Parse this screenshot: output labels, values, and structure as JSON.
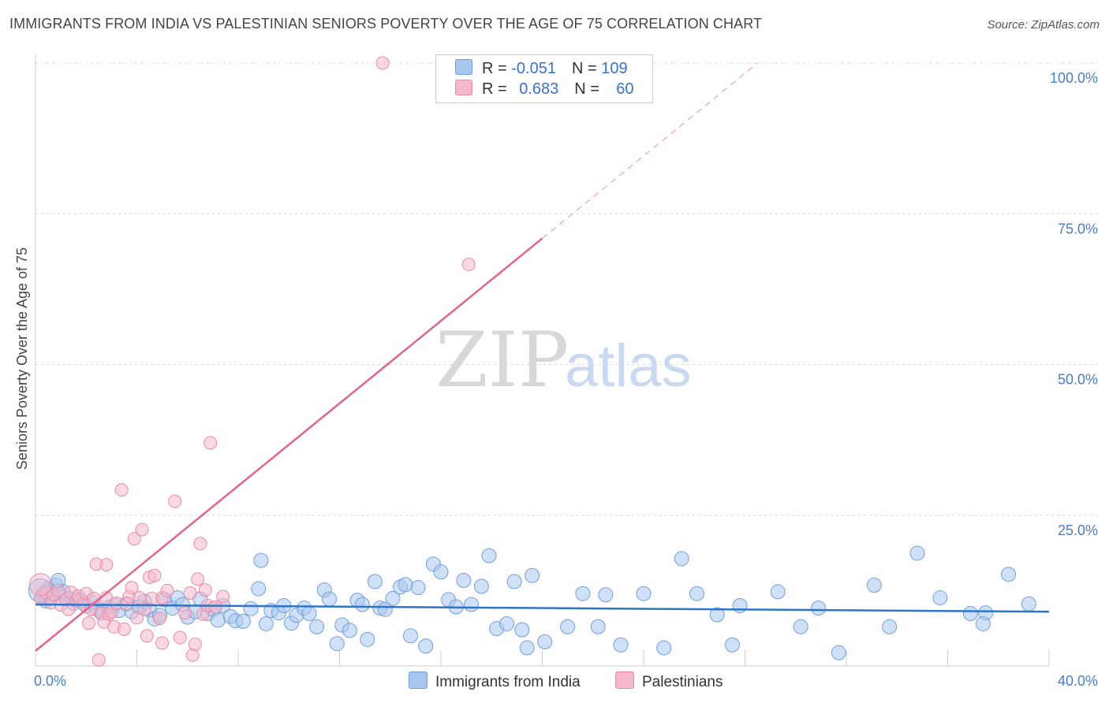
{
  "header": {
    "title": "IMMIGRANTS FROM INDIA VS PALESTINIAN SENIORS POVERTY OVER THE AGE OF 75 CORRELATION CHART",
    "source": "Source: ZipAtlas.com"
  },
  "watermark": {
    "zip": "ZIP",
    "atlas": "atlas"
  },
  "legend": {
    "rows": [
      {
        "r_label": "R = ",
        "r_value": "-0.051",
        "n_label": "N = ",
        "n_value": "109"
      },
      {
        "r_label": "R = ",
        "r_value": "0.683",
        "n_label": "N = ",
        "n_value": "60"
      }
    ]
  },
  "colors": {
    "blue_fill": "#a9c6ef",
    "blue_stroke": "#6f9fdc",
    "blue_line": "#2e74c9",
    "pink_fill": "#f5b8cb",
    "pink_stroke": "#e78aa8",
    "pink_line": "#e0648e",
    "grid": "#d5d5d5",
    "axis_text": "#4a7cc7"
  },
  "chart_data": {
    "type": "scatter",
    "title": "IMMIGRANTS FROM INDIA VS PALESTINIAN SENIORS POVERTY OVER THE AGE OF 75 CORRELATION CHART",
    "xlabel": "",
    "ylabel": "Seniors Poverty Over the Age of 75",
    "xlim": [
      0,
      40
    ],
    "ylim": [
      0,
      100
    ],
    "x_tick_labels": [
      "0.0%",
      "40.0%"
    ],
    "y_ticks": [
      25,
      50,
      75,
      100
    ],
    "y_tick_labels": [
      "25.0%",
      "50.0%",
      "75.0%",
      "100.0%"
    ],
    "legend_position": "bottom-center",
    "series": [
      {
        "name": "Immigrants from India",
        "r": -0.051,
        "n": 109,
        "trend": {
          "x": [
            0,
            40
          ],
          "y": [
            10.2,
            9.0
          ],
          "solid_to": 40
        },
        "points": [
          [
            0.3,
            11.8
          ],
          [
            0.5,
            12.8
          ],
          [
            0.8,
            13.4
          ],
          [
            0.4,
            10.8
          ],
          [
            0.6,
            11.4
          ],
          [
            0.9,
            11.9
          ],
          [
            1.1,
            12.3
          ],
          [
            1.3,
            11.2
          ],
          [
            1.5,
            10.4
          ],
          [
            1.7,
            11.1
          ],
          [
            2.0,
            10.0
          ],
          [
            2.2,
            10.6
          ],
          [
            2.4,
            9.5
          ],
          [
            2.6,
            8.8
          ],
          [
            2.9,
            9.7
          ],
          [
            3.1,
            10.1
          ],
          [
            3.3,
            9.2
          ],
          [
            3.6,
            10.3
          ],
          [
            3.8,
            9.0
          ],
          [
            4.1,
            9.8
          ],
          [
            4.3,
            10.7
          ],
          [
            4.5,
            9.3
          ],
          [
            4.7,
            7.8
          ],
          [
            4.9,
            8.4
          ],
          [
            5.1,
            11.0
          ],
          [
            5.4,
            9.6
          ],
          [
            5.6,
            11.3
          ],
          [
            5.8,
            10.2
          ],
          [
            6.0,
            8.1
          ],
          [
            6.3,
            9.0
          ],
          [
            6.5,
            11.1
          ],
          [
            6.8,
            8.7
          ],
          [
            7.0,
            9.4
          ],
          [
            7.2,
            7.6
          ],
          [
            7.4,
            10.0
          ],
          [
            7.7,
            8.2
          ],
          [
            7.9,
            7.5
          ],
          [
            8.2,
            7.4
          ],
          [
            8.5,
            9.5
          ],
          [
            8.8,
            12.8
          ],
          [
            8.9,
            17.5
          ],
          [
            9.1,
            7.0
          ],
          [
            9.3,
            9.2
          ],
          [
            9.6,
            8.8
          ],
          [
            9.8,
            10.0
          ],
          [
            10.1,
            7.1
          ],
          [
            10.3,
            8.4
          ],
          [
            10.6,
            9.6
          ],
          [
            10.8,
            8.7
          ],
          [
            11.1,
            6.5
          ],
          [
            11.4,
            12.6
          ],
          [
            11.6,
            11.1
          ],
          [
            11.9,
            3.7
          ],
          [
            12.1,
            6.8
          ],
          [
            12.4,
            5.9
          ],
          [
            12.7,
            10.9
          ],
          [
            12.9,
            10.2
          ],
          [
            13.1,
            4.4
          ],
          [
            13.4,
            14.0
          ],
          [
            13.6,
            9.6
          ],
          [
            13.8,
            9.4
          ],
          [
            14.1,
            11.2
          ],
          [
            14.4,
            13.1
          ],
          [
            14.6,
            13.5
          ],
          [
            14.8,
            5.0
          ],
          [
            15.1,
            13.0
          ],
          [
            15.4,
            3.3
          ],
          [
            15.7,
            16.9
          ],
          [
            16.0,
            15.6
          ],
          [
            16.3,
            11.0
          ],
          [
            16.6,
            9.8
          ],
          [
            16.9,
            14.2
          ],
          [
            17.2,
            10.2
          ],
          [
            17.6,
            13.2
          ],
          [
            17.9,
            18.3
          ],
          [
            18.2,
            6.2
          ],
          [
            18.6,
            7.0
          ],
          [
            18.9,
            14.0
          ],
          [
            19.2,
            6.0
          ],
          [
            19.4,
            3.0
          ],
          [
            19.6,
            15.0
          ],
          [
            20.1,
            4.0
          ],
          [
            21.0,
            6.5
          ],
          [
            21.6,
            12.0
          ],
          [
            22.2,
            6.5
          ],
          [
            22.5,
            11.8
          ],
          [
            23.1,
            3.5
          ],
          [
            24.0,
            12.0
          ],
          [
            24.8,
            3.0
          ],
          [
            25.5,
            17.8
          ],
          [
            26.1,
            12.0
          ],
          [
            26.9,
            8.5
          ],
          [
            27.5,
            3.5
          ],
          [
            27.8,
            10.0
          ],
          [
            29.3,
            12.3
          ],
          [
            30.2,
            6.5
          ],
          [
            30.9,
            9.6
          ],
          [
            31.7,
            2.2
          ],
          [
            33.1,
            13.4
          ],
          [
            33.7,
            6.5
          ],
          [
            34.8,
            18.7
          ],
          [
            35.7,
            11.3
          ],
          [
            36.9,
            8.7
          ],
          [
            37.5,
            8.8
          ],
          [
            37.4,
            7.0
          ],
          [
            38.4,
            15.2
          ],
          [
            39.2,
            10.3
          ],
          [
            0.9,
            14.2
          ],
          [
            1.8,
            10.8
          ]
        ]
      },
      {
        "name": "Palestinians",
        "r": 0.683,
        "n": 60,
        "trend": {
          "x": [
            0,
            28.5
          ],
          "y": [
            2.5,
            100
          ],
          "solid_to": 20
        },
        "points": [
          [
            0.2,
            11.3
          ],
          [
            0.4,
            12.2
          ],
          [
            0.6,
            10.5
          ],
          [
            0.7,
            11.8
          ],
          [
            0.9,
            12.5
          ],
          [
            1.0,
            10.1
          ],
          [
            1.2,
            11.0
          ],
          [
            1.3,
            9.4
          ],
          [
            1.4,
            12.2
          ],
          [
            1.6,
            10.8
          ],
          [
            1.7,
            11.6
          ],
          [
            1.9,
            10.3
          ],
          [
            2.0,
            12.0
          ],
          [
            2.1,
            7.1
          ],
          [
            2.2,
            9.4
          ],
          [
            2.3,
            11.2
          ],
          [
            2.4,
            16.9
          ],
          [
            2.5,
            1.0
          ],
          [
            2.6,
            8.7
          ],
          [
            2.7,
            7.3
          ],
          [
            2.8,
            11.3
          ],
          [
            2.9,
            8.6
          ],
          [
            3.0,
            9.0
          ],
          [
            3.1,
            6.5
          ],
          [
            3.2,
            10.4
          ],
          [
            3.4,
            29.2
          ],
          [
            3.5,
            6.1
          ],
          [
            3.6,
            10.3
          ],
          [
            3.7,
            11.5
          ],
          [
            3.8,
            13.0
          ],
          [
            3.9,
            21.1
          ],
          [
            4.0,
            8.0
          ],
          [
            4.1,
            11.3
          ],
          [
            4.2,
            22.6
          ],
          [
            4.3,
            9.4
          ],
          [
            4.4,
            5.0
          ],
          [
            4.5,
            14.7
          ],
          [
            4.6,
            11.2
          ],
          [
            4.7,
            15.0
          ],
          [
            4.9,
            7.9
          ],
          [
            5.0,
            11.3
          ],
          [
            5.2,
            12.5
          ],
          [
            5.5,
            27.3
          ],
          [
            5.7,
            4.7
          ],
          [
            5.9,
            8.8
          ],
          [
            6.1,
            12.1
          ],
          [
            6.2,
            1.8
          ],
          [
            6.3,
            3.6
          ],
          [
            6.4,
            14.4
          ],
          [
            6.5,
            20.3
          ],
          [
            6.6,
            8.6
          ],
          [
            6.7,
            12.6
          ],
          [
            6.8,
            10.0
          ],
          [
            6.9,
            37.0
          ],
          [
            7.1,
            9.8
          ],
          [
            7.4,
            11.5
          ],
          [
            2.8,
            16.8
          ],
          [
            5.0,
            3.8
          ],
          [
            13.7,
            100.0
          ],
          [
            17.1,
            66.6
          ]
        ]
      }
    ]
  },
  "bottom_legend": {
    "items": [
      {
        "label": "Immigrants from India"
      },
      {
        "label": "Palestinians"
      }
    ]
  }
}
